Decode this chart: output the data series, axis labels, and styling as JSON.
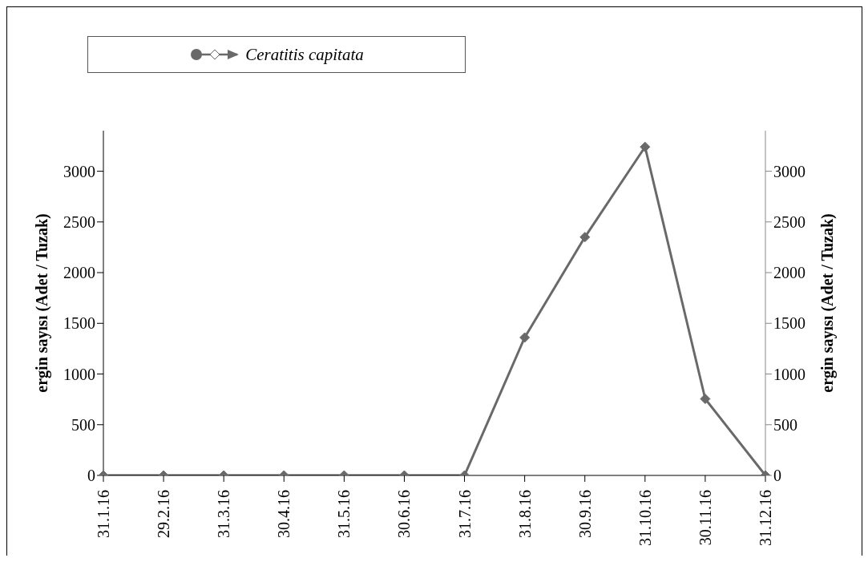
{
  "chart_data": {
    "type": "line",
    "ylabel": "ergin sayısı (Adet / Tuzak)",
    "y2label": "ergin sayısı (Adet / Tuzak)",
    "categories": [
      "31.1.16",
      "29.2.16",
      "31.3.16",
      "30.4.16",
      "31.5.16",
      "30.6.16",
      "31.7.16",
      "31.8.16",
      "30.9.16",
      "31.10.16",
      "30.11.16",
      "31.12.16"
    ],
    "series": [
      {
        "name": "Ceratitis capitata",
        "color": "#696969",
        "values": [
          0,
          0,
          0,
          0,
          0,
          0,
          0,
          1360,
          2350,
          3240,
          755,
          0
        ]
      }
    ],
    "ylim": [
      0,
      3400
    ],
    "yticks": [
      0,
      500,
      1000,
      1500,
      2000,
      2500,
      3000
    ],
    "y2lim": [
      0,
      3400
    ],
    "y2ticks": [
      0,
      500,
      1000,
      1500,
      2000,
      2500,
      3000
    ],
    "grid": false,
    "legend": "top left",
    "marker": "diamond",
    "line_style": "solid"
  }
}
